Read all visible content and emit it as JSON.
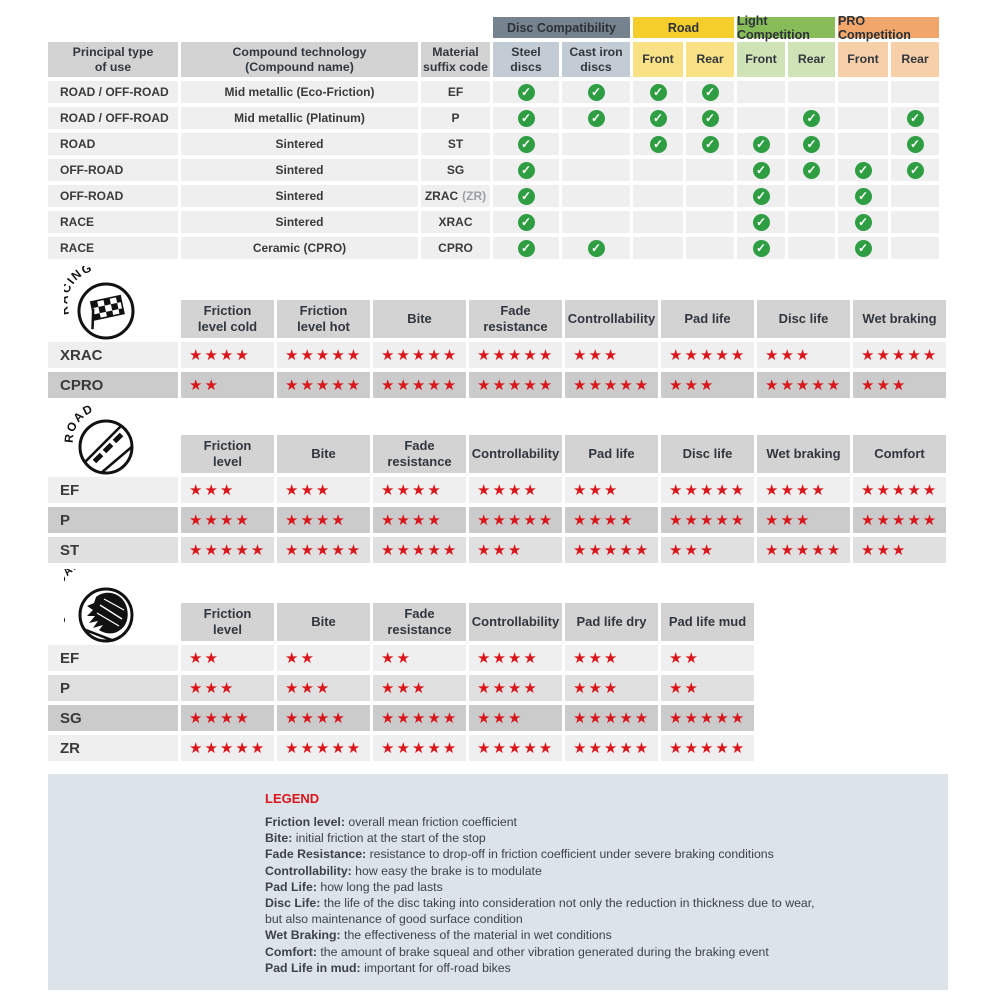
{
  "colors": {
    "star_red": "#d9161c",
    "check_green": "#2f9e43",
    "header_gray": "#d3d3d3",
    "row_light": "#efefef",
    "row_medium": "#e0e0e0",
    "row_dark": "#cbcbcb",
    "disc_group_header": "#76828e",
    "disc_group_cell": "#c3ccd4",
    "road_group_header": "#f6ce2b",
    "road_group_cell": "#f9e286",
    "light_comp_header": "#87bc59",
    "light_comp_cell": "#cfe3b7",
    "pro_comp_header": "#f1a76b",
    "pro_comp_cell": "#f7d0aa",
    "legend_bg": "#dde4e9"
  },
  "glyphs": {
    "star": "★",
    "check": "✓"
  },
  "chart_data": [
    {
      "type": "table",
      "id": "compatibility",
      "main_headers": [
        "Principal type\nof use",
        "Compound technology\n(Compound name)",
        "Material\nsuffix code"
      ],
      "groups": [
        {
          "label": "Disc Compatibility",
          "header_bg": "#76828e",
          "cell_bg": "#c3ccd4",
          "cols": [
            "Steel\ndiscs",
            "Cast iron\ndiscs"
          ]
        },
        {
          "label": "Road",
          "header_bg": "#f6ce2b",
          "cell_bg": "#f9e286",
          "cols": [
            "Front",
            "Rear"
          ]
        },
        {
          "label": "Light Competition",
          "header_bg": "#87bc59",
          "cell_bg": "#cfe3b7",
          "cols": [
            "Front",
            "Rear"
          ]
        },
        {
          "label": "PRO Competition",
          "header_bg": "#f1a76b",
          "cell_bg": "#f7d0aa",
          "cols": [
            "Front",
            "Rear"
          ]
        }
      ],
      "rows": [
        {
          "use": "ROAD / OFF-ROAD",
          "compound": "Mid metallic (Eco-Friction)",
          "code": "EF",
          "code_note": "",
          "checks": [
            1,
            1,
            1,
            1,
            0,
            0,
            0,
            0
          ]
        },
        {
          "use": "ROAD / OFF-ROAD",
          "compound": "Mid metallic (Platinum)",
          "code": "P",
          "code_note": "",
          "checks": [
            1,
            1,
            1,
            1,
            0,
            1,
            0,
            1
          ]
        },
        {
          "use": "ROAD",
          "compound": "Sintered",
          "code": "ST",
          "code_note": "",
          "checks": [
            1,
            0,
            1,
            1,
            1,
            1,
            0,
            1
          ]
        },
        {
          "use": "OFF-ROAD",
          "compound": "Sintered",
          "code": "SG",
          "code_note": "",
          "checks": [
            1,
            0,
            0,
            0,
            1,
            1,
            1,
            1
          ]
        },
        {
          "use": "OFF-ROAD",
          "compound": "Sintered",
          "code": "ZRAC",
          "code_note": "(ZR)",
          "checks": [
            1,
            0,
            0,
            0,
            1,
            0,
            1,
            0
          ]
        },
        {
          "use": "RACE",
          "compound": "Sintered",
          "code": "XRAC",
          "code_note": "",
          "checks": [
            1,
            0,
            0,
            0,
            1,
            0,
            1,
            0
          ]
        },
        {
          "use": "RACE",
          "compound": "Ceramic (CPRO)",
          "code": "CPRO",
          "code_note": "",
          "checks": [
            1,
            1,
            0,
            0,
            1,
            0,
            1,
            0
          ]
        }
      ]
    },
    {
      "type": "table",
      "id": "racing",
      "icon_label": "RACING",
      "max_stars": 5,
      "columns": [
        "Friction\nlevel cold",
        "Friction\nlevel hot",
        "Bite",
        "Fade\nresistance",
        "Controllability",
        "Pad life",
        "Disc life",
        "Wet braking"
      ],
      "rows": [
        {
          "label": "XRAC",
          "shade": "light",
          "stars": [
            4,
            5,
            5,
            5,
            3,
            5,
            3,
            5
          ]
        },
        {
          "label": "CPRO",
          "shade": "dark",
          "stars": [
            2,
            5,
            5,
            5,
            5,
            3,
            5,
            3
          ]
        }
      ]
    },
    {
      "type": "table",
      "id": "road",
      "icon_label": "ROAD",
      "max_stars": 5,
      "columns": [
        "Friction\nlevel",
        "Bite",
        "Fade\nresistance",
        "Controllability",
        "Pad life",
        "Disc life",
        "Wet braking",
        "Comfort"
      ],
      "rows": [
        {
          "label": "EF",
          "shade": "light",
          "stars": [
            3,
            3,
            4,
            4,
            3,
            5,
            4,
            5
          ]
        },
        {
          "label": "P",
          "shade": "dark",
          "stars": [
            4,
            4,
            4,
            5,
            4,
            5,
            3,
            5
          ]
        },
        {
          "label": "ST",
          "shade": "medium",
          "stars": [
            5,
            5,
            5,
            3,
            5,
            3,
            5,
            3
          ]
        }
      ]
    },
    {
      "type": "table",
      "id": "offroad",
      "icon_label": "OFF-ROAD",
      "max_stars": 5,
      "columns": [
        "Friction\nlevel",
        "Bite",
        "Fade\nresistance",
        "Controllability",
        "Pad life dry",
        "Pad life mud"
      ],
      "rows": [
        {
          "label": "EF",
          "shade": "light",
          "stars": [
            2,
            2,
            2,
            4,
            3,
            2
          ]
        },
        {
          "label": "P",
          "shade": "medium",
          "stars": [
            3,
            3,
            3,
            4,
            3,
            2
          ]
        },
        {
          "label": "SG",
          "shade": "dark",
          "stars": [
            4,
            4,
            5,
            3,
            5,
            5
          ]
        },
        {
          "label": "ZR",
          "shade": "light",
          "stars": [
            5,
            5,
            5,
            5,
            5,
            5
          ]
        }
      ]
    }
  ],
  "legend": {
    "title": "LEGEND",
    "items": [
      {
        "term": "Friction level",
        "desc": "overall mean friction coefficient"
      },
      {
        "term": "Bite",
        "desc": "initial friction at the start of the stop"
      },
      {
        "term": "Fade Resistance",
        "desc": "resistance to drop-off in friction coefficient under severe braking conditions"
      },
      {
        "term": "Controllability",
        "desc": "how easy the brake is to modulate"
      },
      {
        "term": "Pad Life",
        "desc": "how long the pad lasts"
      },
      {
        "term": "Disc Life",
        "desc": "the life of the disc taking into consideration not only the reduction in thickness due to wear,",
        "cont": "but also maintenance of good surface condition"
      },
      {
        "term": "Wet Braking",
        "desc": "the effectiveness of the material in wet conditions"
      },
      {
        "term": "Comfort",
        "desc": "the amount of brake squeal and other vibration generated during the braking event"
      },
      {
        "term": "Pad Life in mud",
        "desc": "important for off-road bikes"
      }
    ]
  }
}
